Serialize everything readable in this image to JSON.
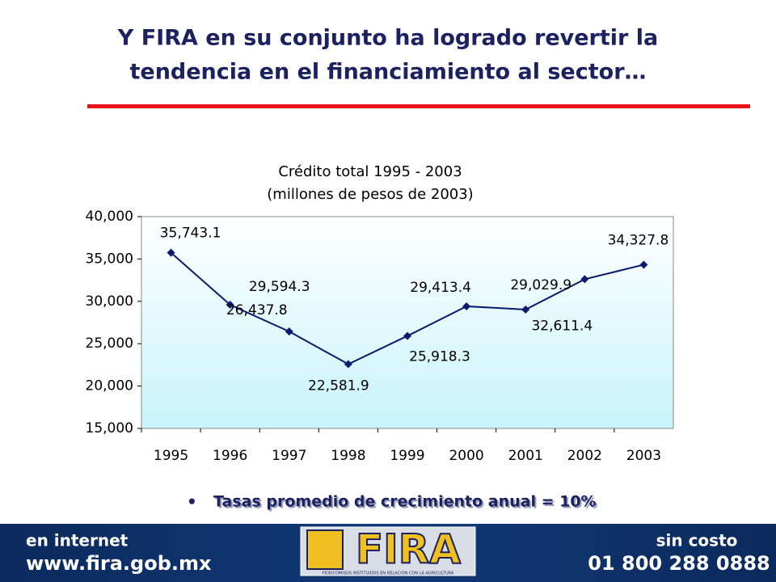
{
  "header": {
    "title_lines": [
      "Y FIRA en su conjunto ha logrado revertir la",
      "tendencia en el financiamiento al sector…"
    ]
  },
  "chart_data": {
    "type": "line",
    "title": "Crédito total 1995 - 2003",
    "subtitle": "(millones de pesos de 2003)",
    "categories": [
      "1995",
      "1996",
      "1997",
      "1998",
      "1999",
      "2000",
      "2001",
      "2002",
      "2003"
    ],
    "values": [
      35743.1,
      29594.3,
      26437.8,
      22581.9,
      25918.3,
      29413.4,
      29029.9,
      32611.4,
      34327.8
    ],
    "value_labels": [
      "35,743.1",
      "29,594.3",
      "26,437.8",
      "22,581.9",
      "25,918.3",
      "29,413.4",
      "29,029.9",
      "32,611.4",
      "34,327.8"
    ],
    "color": "#0a1a6e",
    "ylim": [
      15000,
      40000
    ],
    "yticks": [
      {
        "value": 15000,
        "label": "15,000"
      },
      {
        "value": 20000,
        "label": "20,000"
      },
      {
        "value": 25000,
        "label": "25,000"
      },
      {
        "value": 30000,
        "label": "30,000"
      },
      {
        "value": 35000,
        "label": "35,000"
      },
      {
        "value": 40000,
        "label": "40,000"
      }
    ]
  },
  "bullet": "Tasas promedio de crecimiento anual =  10%",
  "footer": {
    "left_top": "en internet",
    "left_bottom": "www.fira.gob.mx",
    "logo": "FIRA",
    "logo_caption": "FIDEICOMISOS INSTITUIDOS EN RELACION CON LA AGRICULTURA",
    "right_top": "sin costo",
    "right_bottom": "01 800 288 0888"
  }
}
